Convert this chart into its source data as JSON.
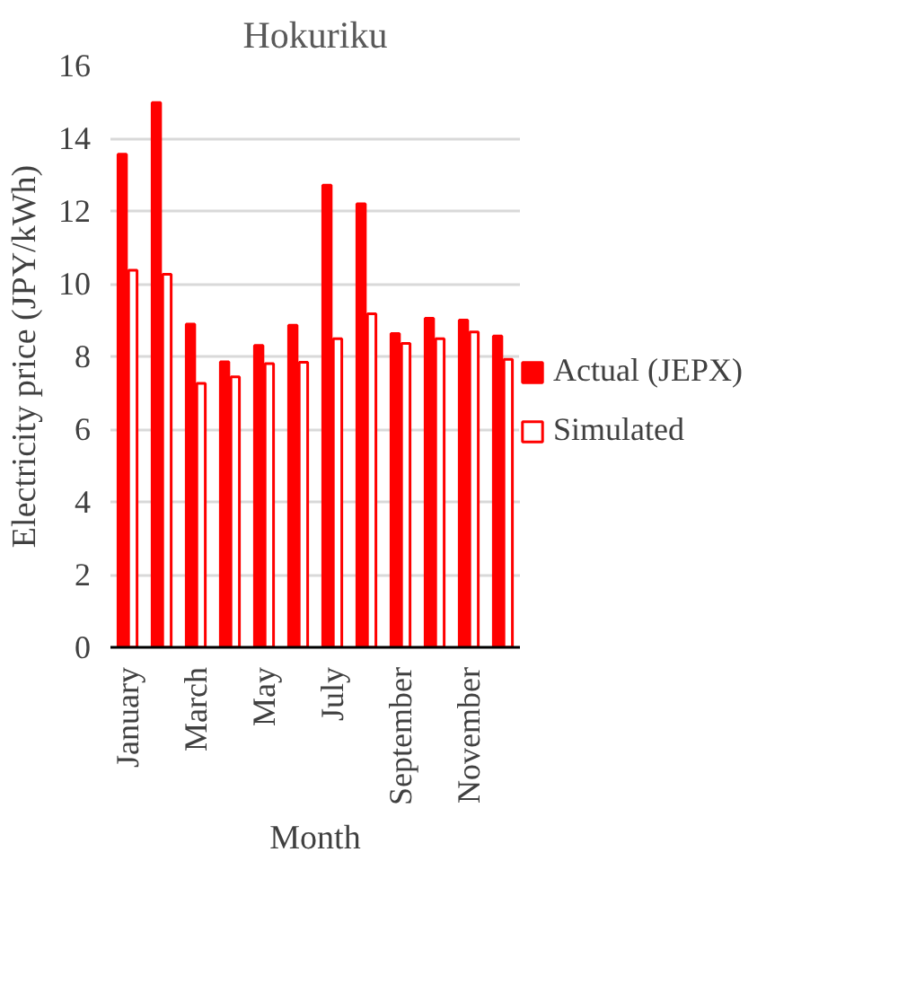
{
  "chart_data": {
    "type": "bar",
    "title": "Hokuriku",
    "xlabel": "Month",
    "ylabel": "Electricity price (JPY/kWh)",
    "categories": [
      "January",
      null,
      "March",
      null,
      "May",
      null,
      "July",
      null,
      "September",
      null,
      "November",
      null
    ],
    "series": [
      {
        "name": "Actual (JEPX)",
        "color": "#ff0000",
        "values": [
          13.56,
          14.98,
          8.89,
          7.85,
          8.3,
          8.86,
          12.71,
          12.2,
          8.63,
          9.05,
          9.0,
          8.56
        ]
      },
      {
        "name": "Simulated",
        "color": "#ff0000",
        "values": [
          10.37,
          10.26,
          7.26,
          7.44,
          7.8,
          7.84,
          8.49,
          9.17,
          8.36,
          8.49,
          8.67,
          7.92
        ]
      }
    ],
    "ylim": [
      0,
      16
    ],
    "yticks": [
      0,
      2,
      4,
      6,
      8,
      10,
      12,
      14,
      16
    ],
    "grid": "y",
    "legend": "right"
  }
}
